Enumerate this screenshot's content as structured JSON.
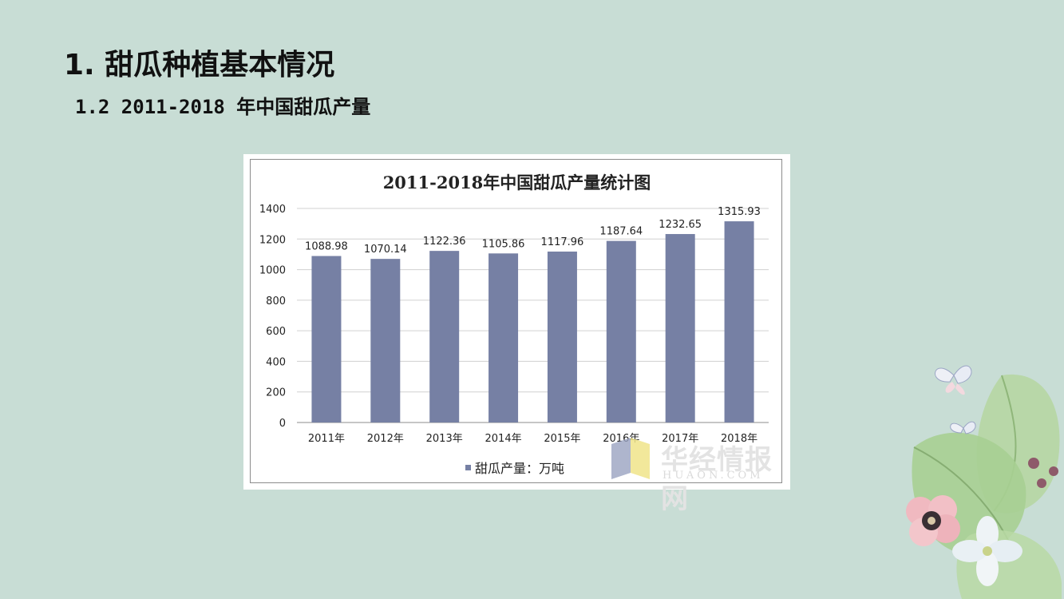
{
  "slide": {
    "title": "1. 甜瓜种植基本情况",
    "subtitle": "1.2 2011-2018 年中国甜瓜产量"
  },
  "watermark": {
    "text": "华经情报网",
    "sub": "HUAON.COM"
  },
  "chart_data": {
    "type": "bar",
    "title": "2011-2018年中国甜瓜产量统计图",
    "categories": [
      "2011年",
      "2012年",
      "2013年",
      "2014年",
      "2015年",
      "2016年",
      "2017年",
      "2018年"
    ],
    "series": [
      {
        "name": "甜瓜产量：万吨",
        "color": "#7680a4",
        "values": [
          1088.98,
          1070.14,
          1122.36,
          1105.86,
          1117.96,
          1187.64,
          1232.65,
          1315.93
        ],
        "labels": [
          "1088.98",
          "1070.14",
          "1122.36",
          "1105.86",
          "1117.96",
          "1187.64",
          "1232.65",
          "1315.93"
        ]
      }
    ],
    "ylim": [
      0,
      1400
    ],
    "yticks": [
      0,
      200,
      400,
      600,
      800,
      1000,
      1200,
      1400
    ],
    "grid": true,
    "legend_position": "bottom"
  }
}
